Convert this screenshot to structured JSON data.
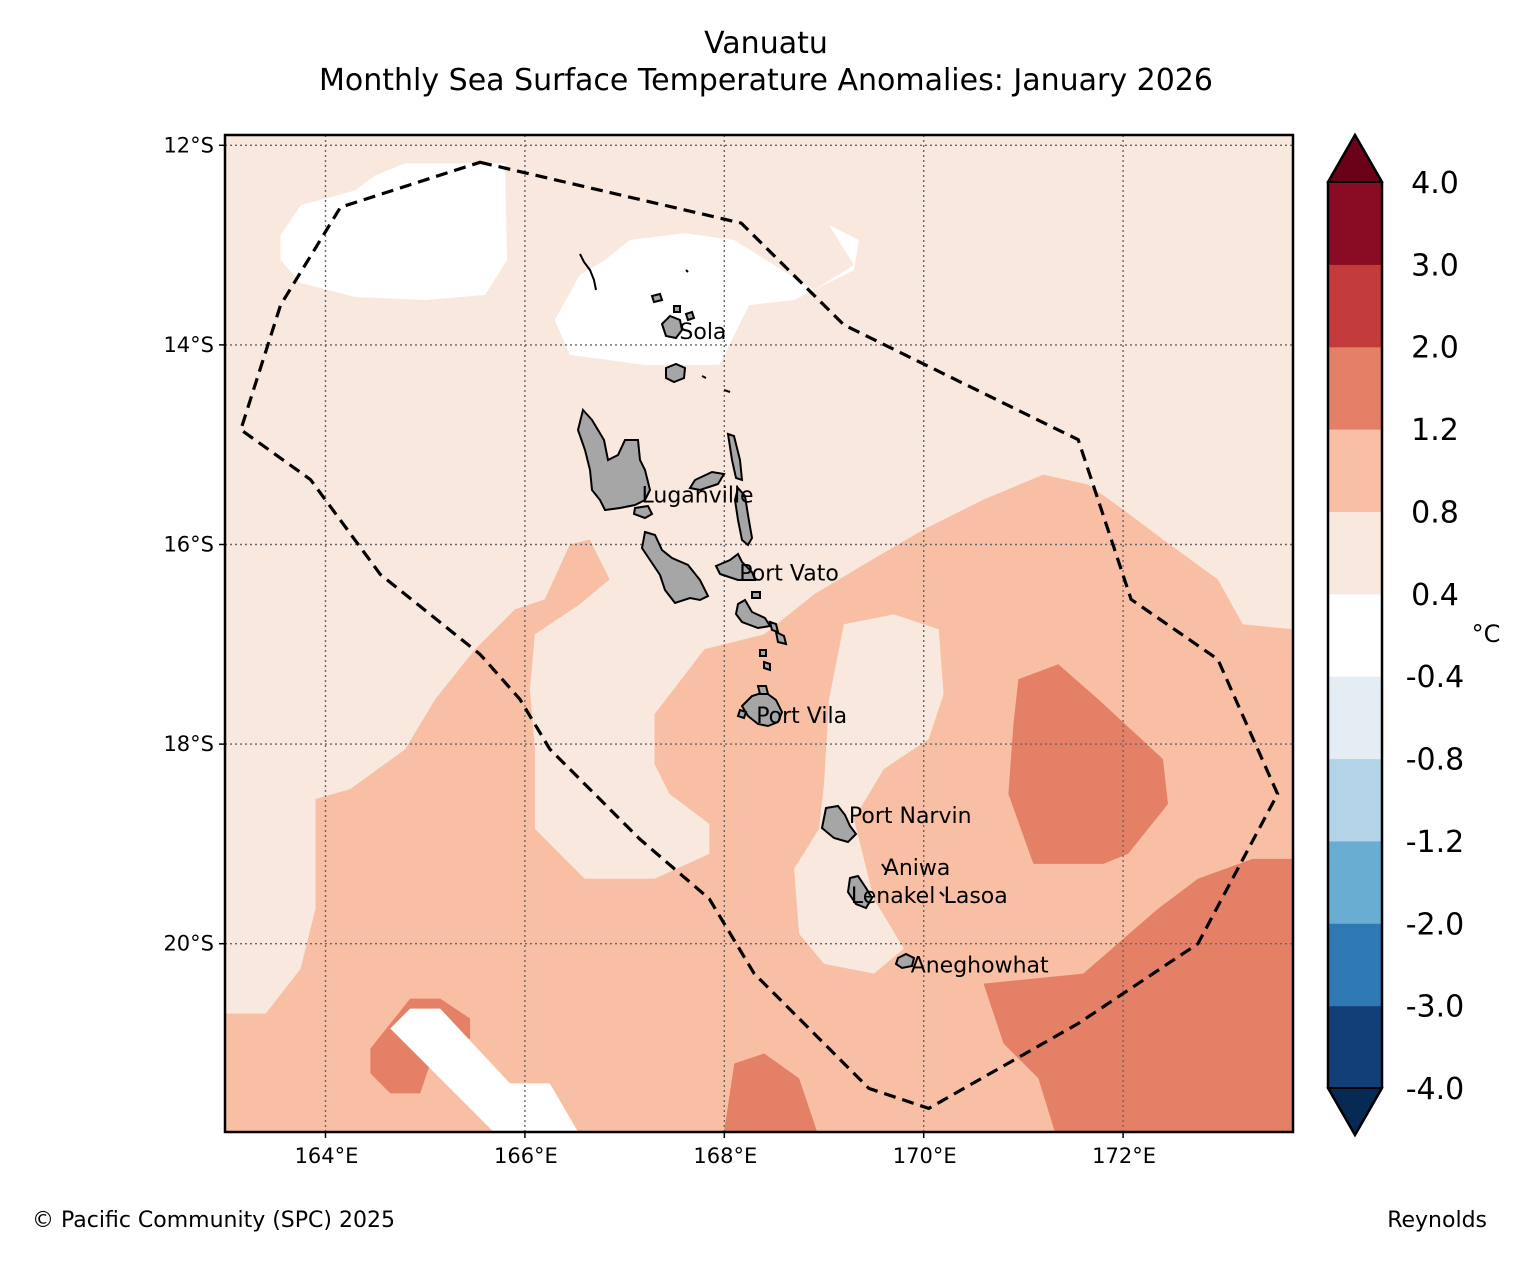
{
  "title": "Vanuatu",
  "subtitle": "Monthly Sea Surface Temperature Anomalies: January 2026",
  "credit": "© Pacific Community (SPC) 2025",
  "source": "Reynolds",
  "chart_data": {
    "type": "heatmap",
    "projection": "lon-lat",
    "lon_range": [
      163.0,
      173.7
    ],
    "lat_range": [
      -22.0,
      -12.0
    ],
    "lon_ticks": [
      {
        "value": 164,
        "label": "164°E"
      },
      {
        "value": 166,
        "label": "166°E"
      },
      {
        "value": 168,
        "label": "168°E"
      },
      {
        "value": 170,
        "label": "170°E"
      },
      {
        "value": 172,
        "label": "172°E"
      }
    ],
    "lat_ticks": [
      {
        "value": -12,
        "label": "12°S"
      },
      {
        "value": -14,
        "label": "14°S"
      },
      {
        "value": -16,
        "label": "16°S"
      },
      {
        "value": -18,
        "label": "18°S"
      },
      {
        "value": -20,
        "label": "20°S"
      }
    ],
    "grid": true,
    "colorbar": {
      "unit": "°C",
      "levels": [
        -4.0,
        -3.0,
        -2.0,
        -1.2,
        -0.8,
        -0.4,
        0.4,
        0.8,
        1.2,
        2.0,
        3.0,
        4.0
      ],
      "labels": [
        "-4.0",
        "-3.0",
        "-2.0",
        "-1.2",
        "-0.8",
        "-0.4",
        "0.4",
        "0.8",
        "1.2",
        "2.0",
        "3.0",
        "4.0"
      ],
      "colors": [
        "#123f78",
        "#2e78b4",
        "#6aadd3",
        "#b3d4e8",
        "#e4ecf4",
        "#ffffff",
        "#f9e8de",
        "#f8bfa4",
        "#e48066",
        "#c43b3c",
        "#8a0c24"
      ],
      "under_color": "#062a54",
      "over_color": "#6b0019",
      "extend": "both"
    },
    "cities": [
      {
        "name": "Sola",
        "lon": 167.55,
        "lat": -13.88
      },
      {
        "name": "Luganville",
        "lon": 167.17,
        "lat": -15.52
      },
      {
        "name": "Port Vato",
        "lon": 168.15,
        "lat": -16.3
      },
      {
        "name": "Port Vila",
        "lon": 168.32,
        "lat": -17.73
      },
      {
        "name": "Port Narvin",
        "lon": 169.25,
        "lat": -18.73
      },
      {
        "name": "Aniwa",
        "lon": 169.6,
        "lat": -19.25
      },
      {
        "name": "Lenakel",
        "lon": 169.27,
        "lat": -19.53
      },
      {
        "name": "Lasoa",
        "lon": 170.2,
        "lat": -19.53
      },
      {
        "name": "Aneghowhat",
        "lon": 169.87,
        "lat": -20.23
      }
    ],
    "eez_boundary": [
      [
        165.55,
        -12.17
      ],
      [
        168.17,
        -12.78
      ],
      [
        169.2,
        -13.8
      ],
      [
        171.55,
        -14.95
      ],
      [
        172.08,
        -16.55
      ],
      [
        172.95,
        -17.15
      ],
      [
        173.55,
        -18.5
      ],
      [
        172.75,
        -20.0
      ],
      [
        171.55,
        -20.8
      ],
      [
        170.05,
        -21.65
      ],
      [
        169.45,
        -21.45
      ],
      [
        168.3,
        -20.3
      ],
      [
        167.85,
        -19.55
      ],
      [
        167.15,
        -18.95
      ],
      [
        166.65,
        -18.45
      ],
      [
        166.25,
        -18.05
      ],
      [
        165.95,
        -17.55
      ],
      [
        165.55,
        -17.1
      ],
      [
        164.55,
        -16.3
      ],
      [
        163.85,
        -15.35
      ],
      [
        163.15,
        -14.85
      ],
      [
        163.55,
        -13.6
      ],
      [
        164.15,
        -12.62
      ]
    ],
    "anomaly_regions": [
      {
        "level": "0.8-1.2",
        "color": "#f8bfa4",
        "polygon": [
          [
            163.0,
            -22.0
          ],
          [
            163.0,
            -20.7
          ],
          [
            163.4,
            -20.7
          ],
          [
            163.75,
            -20.25
          ],
          [
            163.9,
            -19.65
          ],
          [
            163.9,
            -18.55
          ],
          [
            164.25,
            -18.45
          ],
          [
            164.8,
            -18.05
          ],
          [
            165.1,
            -17.55
          ],
          [
            165.5,
            -17.05
          ],
          [
            165.9,
            -16.65
          ],
          [
            166.2,
            -16.55
          ],
          [
            166.45,
            -16.0
          ],
          [
            166.65,
            -15.95
          ],
          [
            166.85,
            -16.35
          ],
          [
            166.55,
            -16.6
          ],
          [
            166.1,
            -16.9
          ],
          [
            166.05,
            -17.45
          ],
          [
            166.1,
            -18.05
          ],
          [
            166.1,
            -18.85
          ],
          [
            166.6,
            -19.35
          ],
          [
            167.3,
            -19.35
          ],
          [
            167.85,
            -19.1
          ],
          [
            167.85,
            -18.8
          ],
          [
            167.45,
            -18.5
          ],
          [
            167.3,
            -18.2
          ],
          [
            167.3,
            -17.7
          ],
          [
            167.8,
            -17.05
          ],
          [
            168.4,
            -16.9
          ],
          [
            168.9,
            -16.5
          ],
          [
            169.4,
            -16.2
          ],
          [
            170.0,
            -15.85
          ],
          [
            170.6,
            -15.55
          ],
          [
            171.2,
            -15.3
          ],
          [
            171.65,
            -15.4
          ],
          [
            172.0,
            -15.65
          ],
          [
            172.4,
            -15.95
          ],
          [
            172.95,
            -16.35
          ],
          [
            173.2,
            -16.8
          ],
          [
            173.7,
            -16.85
          ],
          [
            173.7,
            -22.0
          ]
        ]
      },
      {
        "level": "0.4-0.8",
        "color": "#f9e8de",
        "polygon": [
          [
            169.2,
            -16.8
          ],
          [
            169.7,
            -16.7
          ],
          [
            170.15,
            -16.85
          ],
          [
            170.2,
            -17.5
          ],
          [
            170.05,
            -17.95
          ],
          [
            169.6,
            -18.25
          ],
          [
            169.3,
            -18.75
          ],
          [
            169.5,
            -19.55
          ],
          [
            169.8,
            -20.05
          ],
          [
            169.5,
            -20.3
          ],
          [
            169.0,
            -20.2
          ],
          [
            168.75,
            -19.9
          ],
          [
            168.7,
            -19.25
          ],
          [
            168.95,
            -18.85
          ],
          [
            169.0,
            -18.4
          ],
          [
            169.05,
            -17.55
          ]
        ]
      },
      {
        "level": "1.2-2.0",
        "color": "#e48066",
        "polygon": [
          [
            170.95,
            -17.35
          ],
          [
            171.35,
            -17.2
          ],
          [
            171.75,
            -17.55
          ],
          [
            172.4,
            -18.15
          ],
          [
            172.45,
            -18.6
          ],
          [
            172.05,
            -19.1
          ],
          [
            171.8,
            -19.2
          ],
          [
            171.1,
            -19.2
          ],
          [
            170.85,
            -18.5
          ],
          [
            170.9,
            -17.8
          ]
        ]
      },
      {
        "level": "1.2-2.0",
        "color": "#e48066",
        "polygon": [
          [
            171.6,
            -20.3
          ],
          [
            172.35,
            -19.65
          ],
          [
            172.75,
            -19.35
          ],
          [
            173.3,
            -19.15
          ],
          [
            173.7,
            -19.15
          ],
          [
            173.7,
            -22.0
          ],
          [
            171.35,
            -22.0
          ],
          [
            171.15,
            -21.35
          ],
          [
            170.8,
            -21.0
          ],
          [
            170.6,
            -20.4
          ]
        ]
      },
      {
        "level": "1.2-2.0",
        "color": "#e48066",
        "polygon": [
          [
            167.98,
            -22.0
          ],
          [
            168.1,
            -21.2
          ],
          [
            168.4,
            -21.1
          ],
          [
            168.75,
            -21.35
          ],
          [
            168.97,
            -22.0
          ]
        ]
      },
      {
        "level": "1.2-2.0",
        "color": "#e48066",
        "polygon": [
          [
            164.45,
            -21.05
          ],
          [
            164.85,
            -20.55
          ],
          [
            165.15,
            -20.55
          ],
          [
            165.45,
            -20.75
          ],
          [
            165.45,
            -20.95
          ],
          [
            165.05,
            -21.2
          ],
          [
            164.95,
            -21.5
          ],
          [
            164.65,
            -21.5
          ],
          [
            164.45,
            -21.3
          ]
        ]
      },
      {
        "level": "-0.4-0.4",
        "color": "#ffffff",
        "polygon": [
          [
            164.65,
            -20.85
          ],
          [
            164.85,
            -20.65
          ],
          [
            165.15,
            -20.65
          ],
          [
            165.85,
            -21.4
          ],
          [
            166.25,
            -21.4
          ],
          [
            166.6,
            -22.0
          ],
          [
            165.8,
            -22.0
          ]
        ]
      },
      {
        "level": "-0.4-0.4",
        "color": "#ffffff",
        "polygon": [
          [
            163.55,
            -12.9
          ],
          [
            163.75,
            -12.6
          ],
          [
            164.3,
            -12.45
          ],
          [
            164.5,
            -12.3
          ],
          [
            164.8,
            -12.18
          ],
          [
            165.8,
            -12.18
          ],
          [
            165.82,
            -13.15
          ],
          [
            165.6,
            -13.5
          ],
          [
            165.0,
            -13.55
          ],
          [
            164.3,
            -13.52
          ],
          [
            163.75,
            -13.38
          ],
          [
            163.55,
            -13.15
          ]
        ]
      },
      {
        "level": "-0.4-0.4",
        "color": "#ffffff",
        "polygon": [
          [
            166.8,
            -13.15
          ],
          [
            167.05,
            -12.95
          ],
          [
            167.6,
            -12.88
          ],
          [
            168.1,
            -12.95
          ],
          [
            168.5,
            -13.2
          ],
          [
            168.9,
            -13.45
          ],
          [
            169.3,
            -13.2
          ],
          [
            169.05,
            -12.8
          ],
          [
            169.35,
            -12.95
          ],
          [
            169.3,
            -13.25
          ],
          [
            168.7,
            -13.55
          ],
          [
            168.25,
            -13.6
          ],
          [
            168.05,
            -14.0
          ],
          [
            167.95,
            -14.2
          ],
          [
            167.2,
            -14.2
          ],
          [
            166.45,
            -14.1
          ],
          [
            166.3,
            -13.75
          ],
          [
            166.55,
            -13.3
          ]
        ]
      }
    ]
  }
}
